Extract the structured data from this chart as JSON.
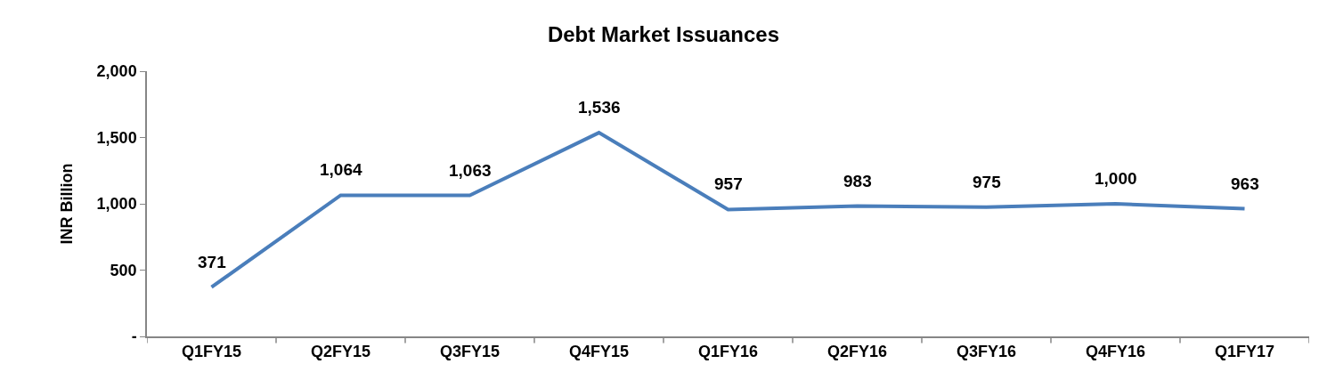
{
  "chart_data": {
    "type": "line",
    "title": "Debt Market Issuances",
    "ylabel": "INR Billion",
    "categories": [
      "Q1FY15",
      "Q2FY15",
      "Q3FY15",
      "Q4FY15",
      "Q1FY16",
      "Q2FY16",
      "Q3FY16",
      "Q4FY16",
      "Q1FY17"
    ],
    "series": [
      {
        "color": "#4a7ebb",
        "values": [
          371,
          1064,
          1063,
          1536,
          957,
          983,
          975,
          1000,
          963
        ],
        "value_labels": [
          "371",
          "1,064",
          "1,063",
          "1,536",
          "957",
          "983",
          "975",
          "1,000",
          "963"
        ]
      }
    ],
    "ylim": [
      0,
      2000
    ],
    "yticks": [
      {
        "value": 0,
        "label": "-"
      },
      500,
      {
        "value": 1000,
        "label": "1,000"
      },
      {
        "value": 1500,
        "label": "1,500"
      },
      {
        "value": 2000,
        "label": "2,000"
      }
    ],
    "legend": false,
    "marker": "none",
    "line_style": "solid"
  }
}
